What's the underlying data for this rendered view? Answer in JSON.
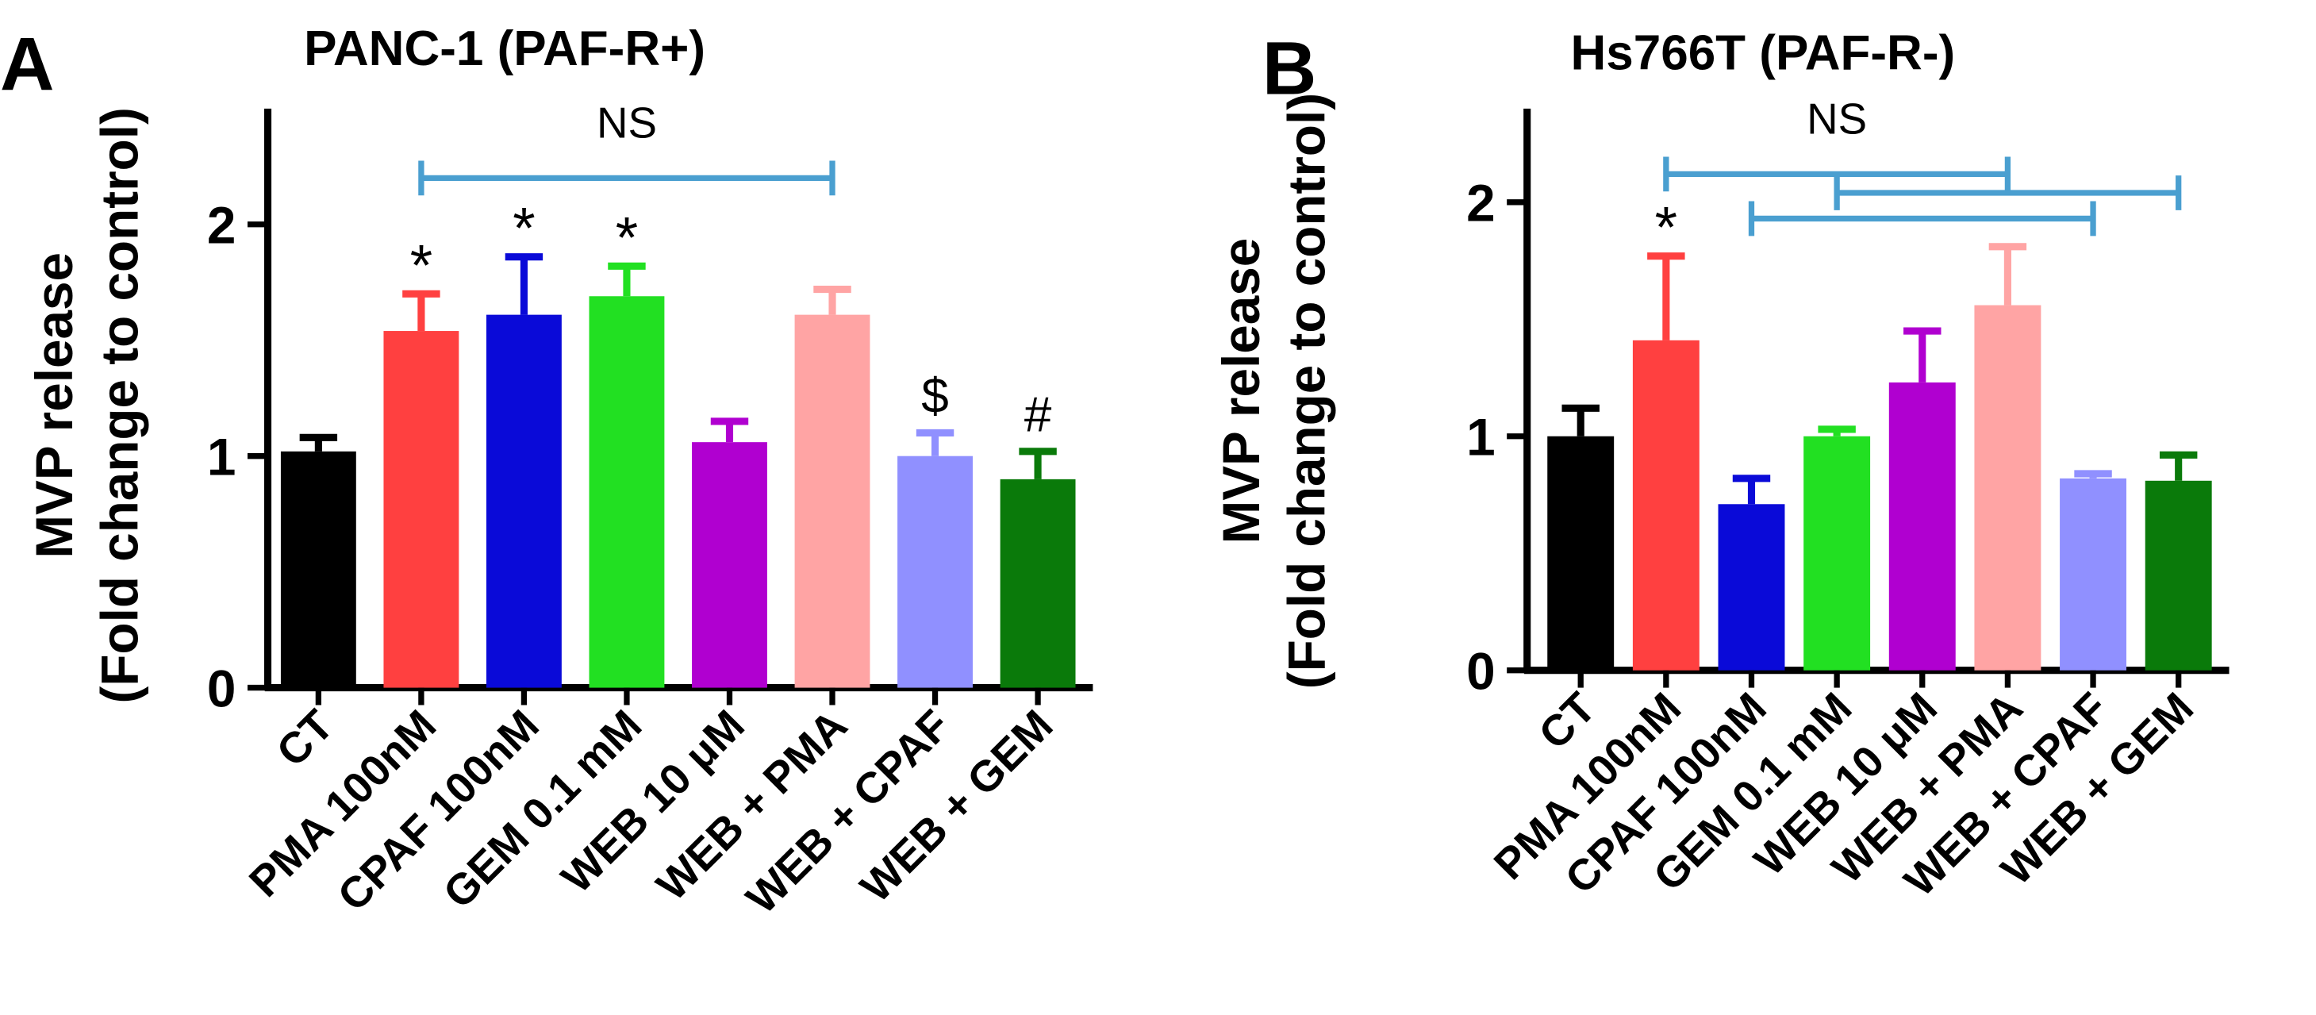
{
  "chart_data": [
    {
      "panel_label": "A",
      "type": "bar",
      "title": "PANC-1 (PAF-R+)",
      "xlabel": "",
      "ylabel_line1": "MVP release",
      "ylabel_line2": "(Fold change to control)",
      "ylim": [
        0,
        2.5
      ],
      "yticks": [
        "0",
        "1",
        "2"
      ],
      "grid": false,
      "categories": [
        "CT",
        "PMA 100nM",
        "CPAF 100nM",
        "GEM 0.1 mM",
        "WEB 10 μM",
        "WEB + PMA",
        "WEB + CPAF",
        "WEB + GEM"
      ],
      "values": [
        1.02,
        1.54,
        1.61,
        1.69,
        1.06,
        1.61,
        1.0,
        0.9
      ],
      "errors": [
        0.06,
        0.16,
        0.25,
        0.13,
        0.09,
        0.11,
        0.1,
        0.12
      ],
      "colors": [
        "#000000",
        "#ff4040",
        "#0a0ad8",
        "#22e022",
        "#b000d0",
        "#ffa4a4",
        "#9090ff",
        "#0a7a0a"
      ],
      "annotations": [
        "",
        "*",
        "*",
        "*",
        "",
        "",
        "$",
        "#"
      ],
      "brackets": [
        {
          "from": 1,
          "to": 5,
          "level": 2.2,
          "label": "NS"
        }
      ]
    },
    {
      "panel_label": "B",
      "type": "bar",
      "title": "Hs766T (PAF-R-)",
      "xlabel": "",
      "ylabel_line1": "MVP release",
      "ylabel_line2": "(Fold change to control)",
      "ylim": [
        0,
        2.4
      ],
      "yticks": [
        "0",
        "1",
        "2"
      ],
      "grid": false,
      "categories": [
        "CT",
        "PMA 100nM",
        "CPAF 100nM",
        "GEM 0.1 mM",
        "WEB 10 μM",
        "WEB + PMA",
        "WEB + CPAF",
        "WEB + GEM"
      ],
      "values": [
        1.0,
        1.41,
        0.71,
        1.0,
        1.23,
        1.56,
        0.82,
        0.81
      ],
      "errors": [
        0.12,
        0.36,
        0.11,
        0.03,
        0.22,
        0.25,
        0.02,
        0.11
      ],
      "colors": [
        "#000000",
        "#ff4040",
        "#0a0ad8",
        "#22e022",
        "#b000d0",
        "#ffa4a4",
        "#9090ff",
        "#0a7a0a"
      ],
      "annotations": [
        "",
        "*",
        "",
        "",
        "",
        "",
        "",
        ""
      ],
      "brackets": [
        {
          "from": 1,
          "to": 5,
          "level": 2.12,
          "label": "NS"
        },
        {
          "from": 3,
          "to": 7,
          "level": 2.04,
          "label": ""
        },
        {
          "from": 2,
          "to": 6,
          "level": 1.93,
          "label": ""
        }
      ]
    }
  ]
}
